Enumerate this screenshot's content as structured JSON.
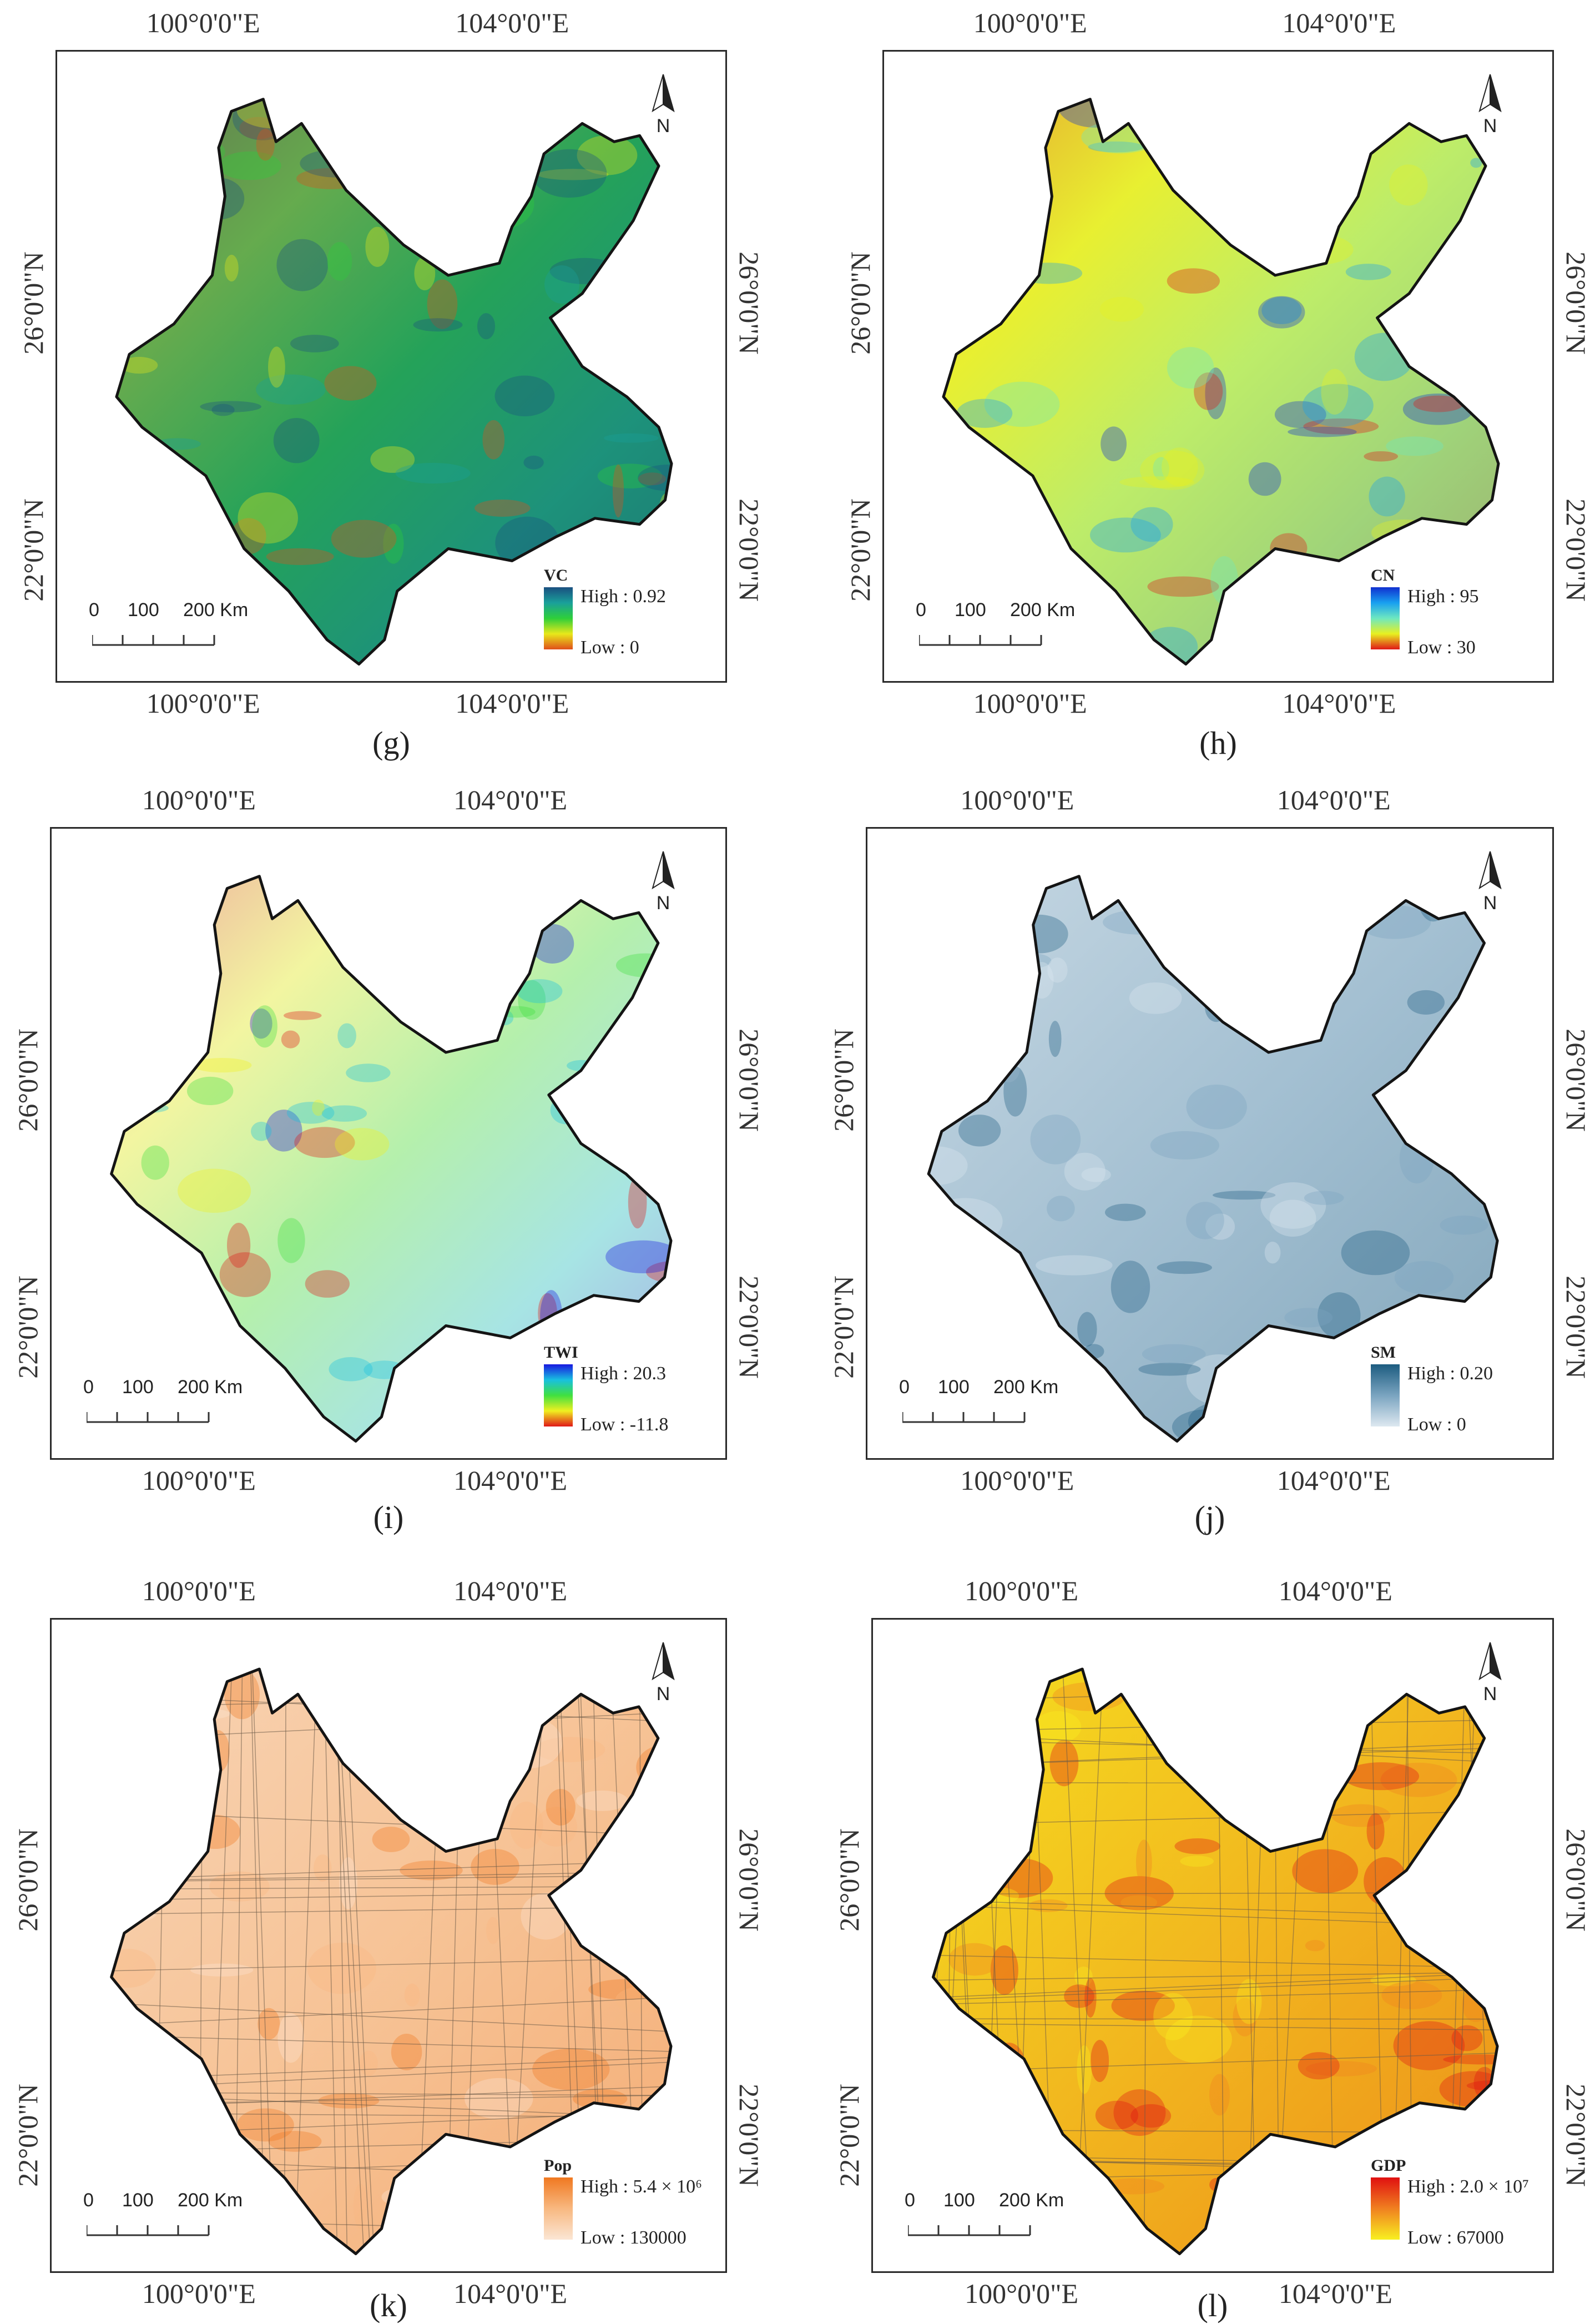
{
  "figure": {
    "panels": [
      {
        "id": "g",
        "caption": "(g)",
        "legend_title": "VC",
        "high": "High : 0.92",
        "low": "Low : 0",
        "ramp": [
          "#1a4f80",
          "#1aa09a",
          "#2ecf3a",
          "#e8e81a",
          "#e0501a"
        ],
        "fill": "#1f8a6a"
      },
      {
        "id": "h",
        "caption": "(h)",
        "legend_title": "CN",
        "high": "High : 95",
        "low": "Low : 30",
        "ramp": [
          "#1030d0",
          "#18a0f0",
          "#6ee8c0",
          "#e8f020",
          "#e01818"
        ],
        "fill": "#e8ef3a"
      },
      {
        "id": "i",
        "caption": "(i)",
        "legend_title": "TWI",
        "high": "High : 20.3",
        "low": "Low : -11.8",
        "ramp": [
          "#1818e0",
          "#18c0e0",
          "#40e040",
          "#f0f020",
          "#e01818"
        ],
        "fill": "#f4f8e6"
      },
      {
        "id": "j",
        "caption": "(j)",
        "legend_title": "SM",
        "high": "High : 0.20",
        "low": "Low : 0",
        "ramp": [
          "#1c5c80",
          "#7aa4c0",
          "#dde8f0"
        ],
        "fill": "#b9cedb"
      },
      {
        "id": "k",
        "caption": "(k)",
        "legend_title": "Pop",
        "high": "High : 5.4 × 10⁶",
        "low": "Low : 130000",
        "ramp": [
          "#f07820",
          "#f8b880",
          "#fbe6d4"
        ],
        "fill": "#f6c9a2"
      },
      {
        "id": "l",
        "caption": "(l)",
        "legend_title": "GDP",
        "high": "High : 2.0 × 10⁷",
        "low": "Low : 67000",
        "ramp": [
          "#e01010",
          "#f08020",
          "#f8f020"
        ],
        "fill": "#f3d41e"
      }
    ],
    "coords": {
      "lon1": "100°0'0\"E",
      "lon2": "104°0'0\"E",
      "lat1": "26°0'0\"N",
      "lat2": "22°0'0\"N"
    },
    "scalebar": {
      "l0": "0",
      "l1": "100",
      "l2": "200 Km"
    },
    "north_label": "N"
  }
}
